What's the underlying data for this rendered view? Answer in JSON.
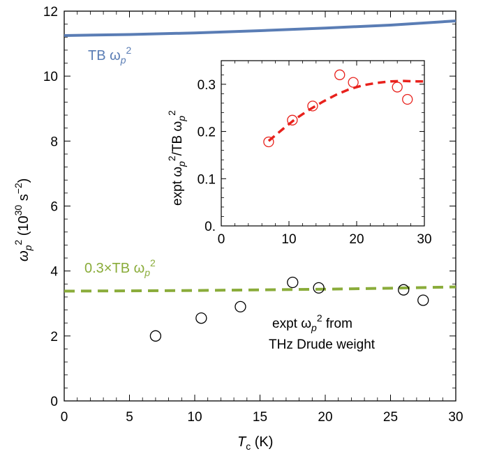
{
  "chart_data": [
    {
      "type": "line",
      "xlabel": "T_c (K)",
      "ylabel": "ω_p² (10^30 s^-2)",
      "xlim": [
        0,
        30
      ],
      "ylim": [
        0,
        12
      ],
      "xticks": [
        "0",
        "5",
        "10",
        "15",
        "20",
        "25",
        "30"
      ],
      "yticks": [
        "0",
        "2",
        "4",
        "6",
        "8",
        "10",
        "12"
      ],
      "series": [
        {
          "name": "TB ω_p²",
          "style": "solid",
          "color": "#5a7db5",
          "x": [
            0,
            5,
            10,
            15,
            20,
            25,
            30
          ],
          "y": [
            11.25,
            11.28,
            11.33,
            11.4,
            11.48,
            11.57,
            11.7
          ]
        },
        {
          "name": "0.3×TB ω_p²",
          "style": "dashed",
          "color": "#8aac3a",
          "x": [
            0,
            5,
            10,
            15,
            20,
            25,
            30
          ],
          "y": [
            3.38,
            3.39,
            3.4,
            3.42,
            3.44,
            3.47,
            3.51
          ]
        },
        {
          "name": "expt ω_p² from THz Drude weight",
          "style": "markers",
          "color": "#000000",
          "x": [
            7.0,
            10.5,
            13.5,
            17.5,
            19.5,
            26.0,
            27.5
          ],
          "y": [
            2.0,
            2.55,
            2.9,
            3.65,
            3.48,
            3.42,
            3.1
          ]
        }
      ]
    },
    {
      "type": "scatter",
      "xlabel": "",
      "ylabel": "expt ω_p²/TB ω_p²",
      "xlim": [
        0,
        30
      ],
      "ylim": [
        0,
        0.35
      ],
      "xticks": [
        "0",
        "10",
        "20",
        "30"
      ],
      "yticks": [
        "0.",
        "0.1",
        "0.2",
        "0.3"
      ],
      "series": [
        {
          "name": "",
          "style": "markers",
          "color": "#e8211c",
          "x": [
            7.0,
            10.5,
            13.5,
            17.5,
            19.5,
            26.0,
            27.5
          ],
          "y": [
            0.178,
            0.224,
            0.254,
            0.32,
            0.304,
            0.294,
            0.268
          ]
        },
        {
          "name": "",
          "style": "dashed",
          "color": "#e8211c",
          "x": [
            7,
            9,
            11,
            13,
            15,
            17,
            19,
            21,
            23,
            25,
            27,
            29,
            30
          ],
          "y": [
            0.18,
            0.204,
            0.227,
            0.246,
            0.263,
            0.278,
            0.29,
            0.298,
            0.303,
            0.306,
            0.307,
            0.306,
            0.306
          ]
        }
      ]
    }
  ],
  "labels": {
    "tb": "TB ω",
    "tb_sub": "p",
    "tb_sup": "2",
    "scaled": "0.3×TB ω",
    "scaled_sub": "p",
    "scaled_sup": "2",
    "expt_line1": "expt ω",
    "expt_sub": "p",
    "expt_sup": "2",
    "expt_rest": " from",
    "expt_line2": "THz Drude weight",
    "ylabel_main": "ω",
    "ylabel_sub": "p",
    "ylabel_sup": "2",
    "ylabel_unit": " (10",
    "ylabel_exp": "30",
    "ylabel_unit2": " s",
    "ylabel_exp2": "−2",
    "ylabel_close": ")",
    "xlabel_main": "T",
    "xlabel_sub": "c",
    "xlabel_unit": " (K)",
    "inset_ylabel_a": "expt ω",
    "inset_ylabel_sub": "p",
    "inset_ylabel_sup": "2",
    "inset_ylabel_b": "/TB ω",
    "inset_ylabel_sub2": "p",
    "inset_ylabel_sup2": "2"
  },
  "colors": {
    "tb_line": "#5a7db5",
    "scaled_line": "#8aac3a",
    "inset_red": "#e8211c",
    "text_green": "#8aac3a",
    "text_blue": "#5a7db5"
  }
}
